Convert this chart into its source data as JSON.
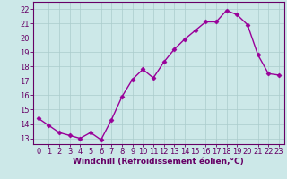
{
  "x": [
    0,
    1,
    2,
    3,
    4,
    5,
    6,
    7,
    8,
    9,
    10,
    11,
    12,
    13,
    14,
    15,
    16,
    17,
    18,
    19,
    20,
    21,
    22,
    23
  ],
  "y": [
    14.4,
    13.9,
    13.4,
    13.2,
    13.0,
    13.4,
    12.9,
    14.3,
    15.9,
    17.1,
    17.8,
    17.2,
    18.3,
    19.2,
    19.9,
    20.5,
    21.1,
    21.1,
    21.9,
    21.6,
    20.9,
    18.8,
    17.5,
    17.4
  ],
  "line_color": "#990099",
  "marker": "D",
  "markersize": 2.5,
  "linewidth": 1.0,
  "bg_color": "#cce8e8",
  "grid_color": "#aacccc",
  "xlabel": "Windchill (Refroidissement éolien,°C)",
  "xlabel_fontsize": 6.5,
  "yticks": [
    13,
    14,
    15,
    16,
    17,
    18,
    19,
    20,
    21,
    22
  ],
  "xticks": [
    0,
    1,
    2,
    3,
    4,
    5,
    6,
    7,
    8,
    9,
    10,
    11,
    12,
    13,
    14,
    15,
    16,
    17,
    18,
    19,
    20,
    21,
    22,
    23
  ],
  "ylim": [
    12.6,
    22.5
  ],
  "xlim": [
    -0.5,
    23.5
  ],
  "tick_color": "#660066",
  "tick_fontsize": 6.0,
  "axis_label_color": "#660066",
  "spine_color": "#660066"
}
